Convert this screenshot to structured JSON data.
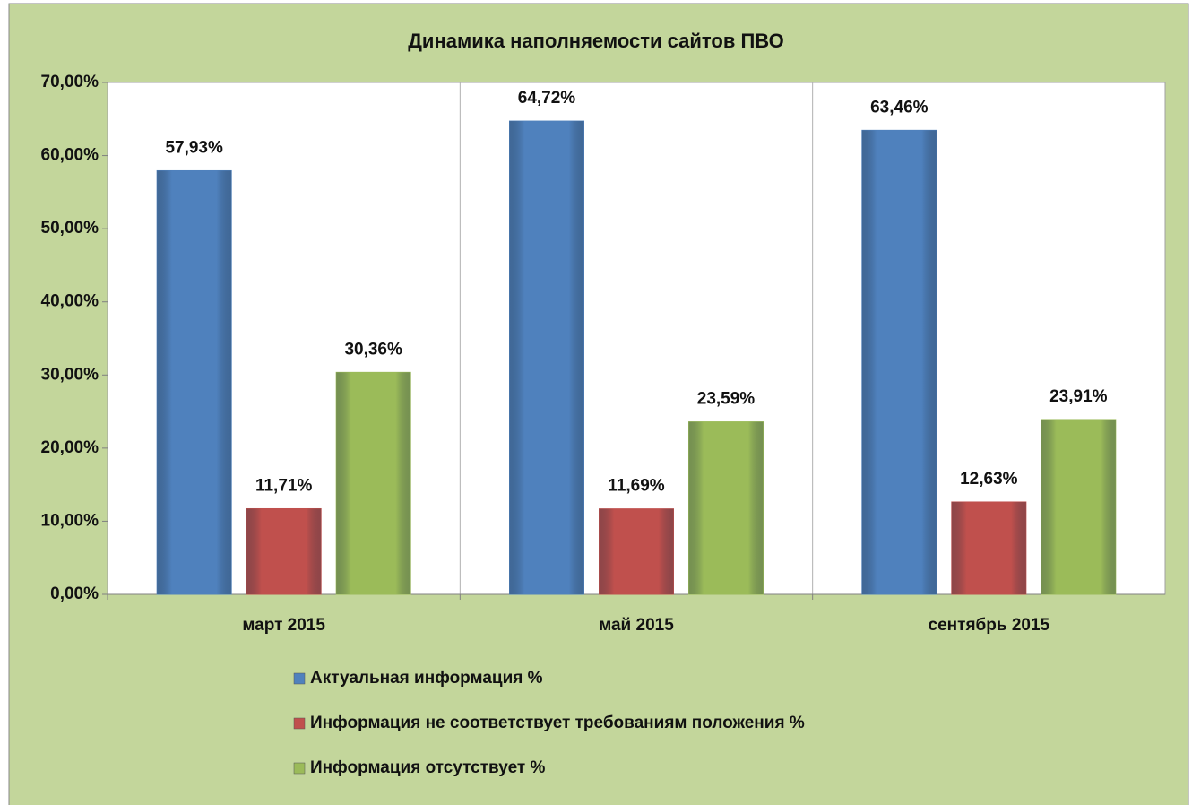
{
  "chart_data": {
    "type": "bar",
    "title": "Динамика наполняемости сайтов ПВО",
    "categories": [
      "март 2015",
      "май 2015",
      "сентябрь 2015"
    ],
    "series": [
      {
        "name": "Актуальная информация %",
        "color": "#4f81bd",
        "values": [
          57.93,
          64.72,
          63.46
        ],
        "value_labels": [
          "57,93%",
          "64,72%",
          "63,46%"
        ]
      },
      {
        "name": "Информация не соответствует требованиям положения %",
        "color": "#c0504d",
        "values": [
          11.71,
          11.69,
          12.63
        ],
        "value_labels": [
          "11,71%",
          "11,69%",
          "12,63%"
        ]
      },
      {
        "name": "Информация отсутствует %",
        "color": "#9bbb59",
        "values": [
          30.36,
          23.59,
          23.91
        ],
        "value_labels": [
          "30,36%",
          "23,59%",
          "23,91%"
        ]
      }
    ],
    "ylim": [
      0,
      70
    ],
    "yticks": [
      {
        "value": 0,
        "label": "0,00%"
      },
      {
        "value": 10,
        "label": "10,00%"
      },
      {
        "value": 20,
        "label": "20,00%"
      },
      {
        "value": 30,
        "label": "30,00%"
      },
      {
        "value": 40,
        "label": "40,00%"
      },
      {
        "value": 50,
        "label": "50,00%"
      },
      {
        "value": 60,
        "label": "60,00%"
      },
      {
        "value": 70,
        "label": "70,00%"
      }
    ],
    "legend": "bottom"
  }
}
